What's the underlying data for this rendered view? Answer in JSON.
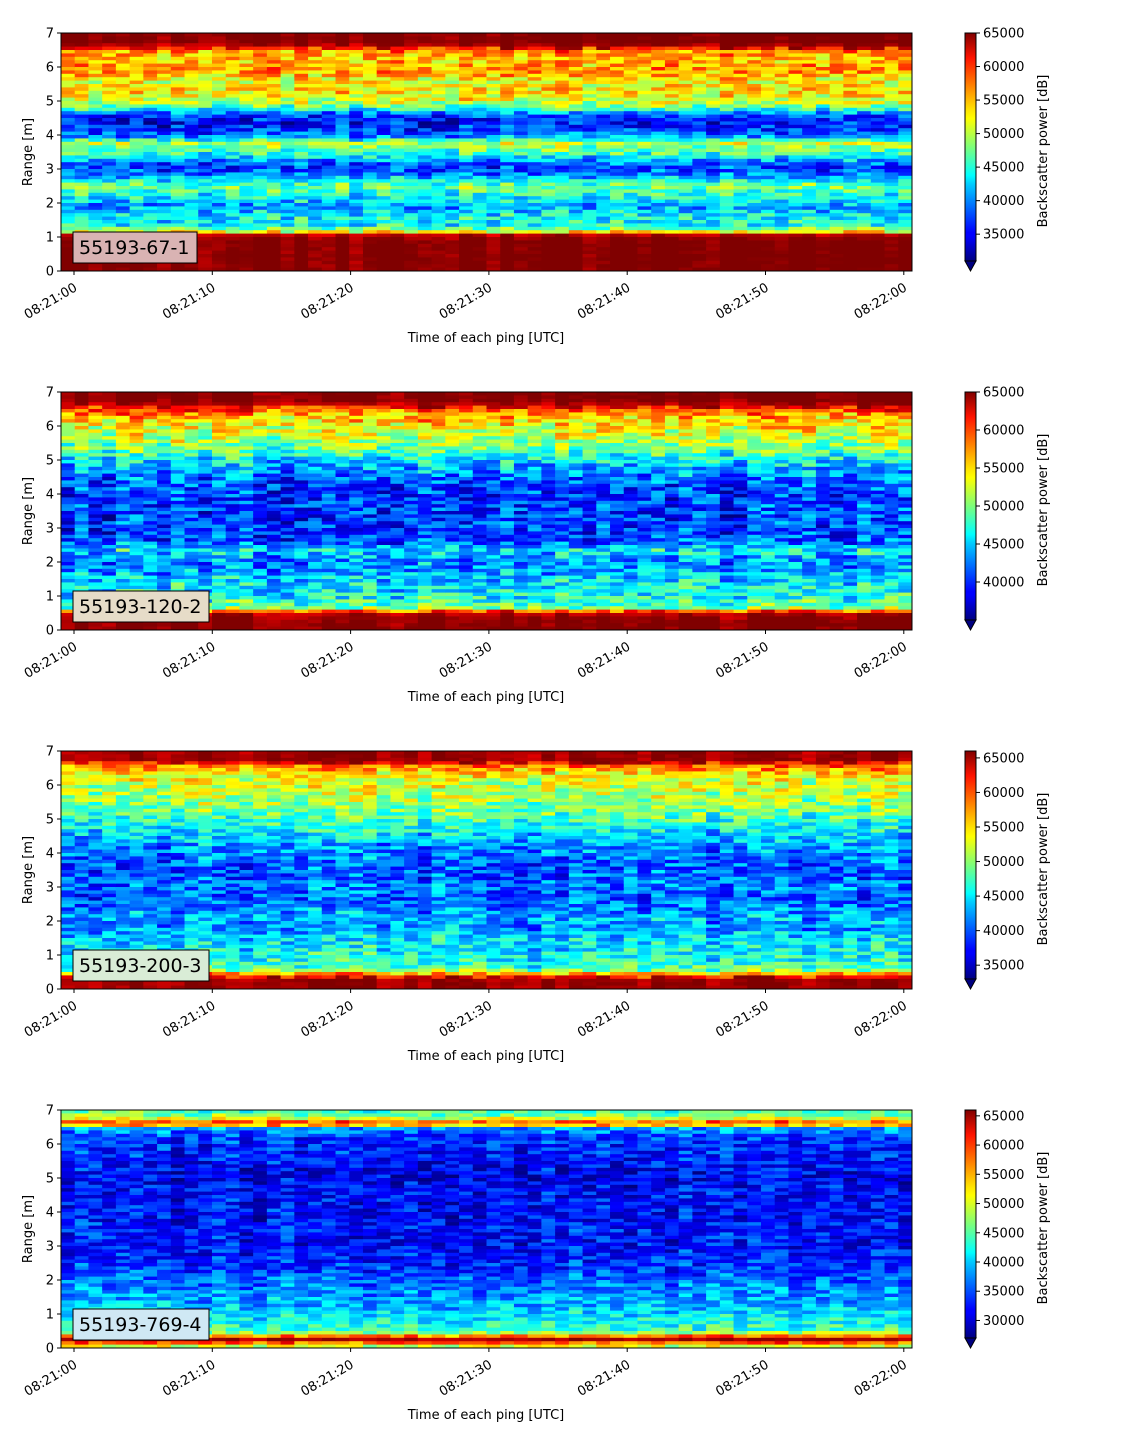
{
  "chart_data": [
    {
      "type": "heatmap",
      "label": "55193-67-1",
      "xlabel": "Time of each ping [UTC]",
      "ylabel": "Range [m]",
      "x_ticks": [
        "08:21:00",
        "08:21:10",
        "08:21:20",
        "08:21:30",
        "08:21:40",
        "08:21:50",
        "08:22:00"
      ],
      "y_ticks": [
        "0",
        "1",
        "2",
        "3",
        "4",
        "5",
        "6",
        "7"
      ],
      "xlim": [
        "08:21:00",
        "08:22:00"
      ],
      "ylim": [
        0,
        7
      ],
      "colorbar": {
        "label": "Backscatter power [dB]",
        "colormap": "jet",
        "range": [
          31000,
          65000
        ],
        "ticks": [
          "35000",
          "40000",
          "45000",
          "50000",
          "55000",
          "60000",
          "65000"
        ]
      },
      "label_box_color": "#d9b3b3",
      "profile": [
        [
          0.15,
          65000
        ],
        [
          0.3,
          65000
        ],
        [
          0.9,
          65000
        ],
        [
          1.05,
          63000
        ],
        [
          1.15,
          52000
        ],
        [
          1.3,
          44000
        ],
        [
          1.6,
          44000
        ],
        [
          1.9,
          40000
        ],
        [
          2.1,
          43000
        ],
        [
          2.3,
          45000
        ],
        [
          2.5,
          48000
        ],
        [
          2.7,
          42000
        ],
        [
          2.9,
          38000
        ],
        [
          3.1,
          37000
        ],
        [
          3.3,
          42000
        ],
        [
          3.5,
          46000
        ],
        [
          3.75,
          50000
        ],
        [
          3.95,
          40000
        ],
        [
          4.15,
          37000
        ],
        [
          4.4,
          35000
        ],
        [
          4.6,
          38000
        ],
        [
          4.8,
          46000
        ],
        [
          5.0,
          51000
        ],
        [
          5.3,
          53000
        ],
        [
          5.6,
          52000
        ],
        [
          5.9,
          56000
        ],
        [
          6.2,
          54000
        ],
        [
          6.45,
          56000
        ],
        [
          6.6,
          63000
        ],
        [
          6.75,
          65000
        ],
        [
          7,
          65000
        ]
      ]
    },
    {
      "type": "heatmap",
      "label": "55193-120-2",
      "xlabel": "Time of each ping [UTC]",
      "ylabel": "Range [m]",
      "x_ticks": [
        "08:21:00",
        "08:21:10",
        "08:21:20",
        "08:21:30",
        "08:21:40",
        "08:21:50",
        "08:22:00"
      ],
      "y_ticks": [
        "0",
        "1",
        "2",
        "3",
        "4",
        "5",
        "6",
        "7"
      ],
      "xlim": [
        "08:21:00",
        "08:22:00"
      ],
      "ylim": [
        0,
        7
      ],
      "colorbar": {
        "label": "Backscatter power [dB]",
        "colormap": "jet",
        "range": [
          35000,
          65000
        ],
        "ticks": [
          "40000",
          "45000",
          "50000",
          "55000",
          "60000",
          "65000"
        ]
      },
      "label_box_color": "#e6dcc8",
      "profile": [
        [
          0.15,
          65000
        ],
        [
          0.3,
          65000
        ],
        [
          0.5,
          63000
        ],
        [
          0.65,
          50000
        ],
        [
          0.9,
          47000
        ],
        [
          1.2,
          46000
        ],
        [
          1.5,
          45000
        ],
        [
          1.8,
          43000
        ],
        [
          2.1,
          43000
        ],
        [
          2.35,
          46000
        ],
        [
          2.6,
          41000
        ],
        [
          2.9,
          40000
        ],
        [
          3.1,
          41000
        ],
        [
          3.3,
          40000
        ],
        [
          3.6,
          41000
        ],
        [
          3.9,
          40000
        ],
        [
          4.2,
          41000
        ],
        [
          4.5,
          42000
        ],
        [
          4.8,
          44000
        ],
        [
          5.1,
          47000
        ],
        [
          5.4,
          50000
        ],
        [
          5.7,
          52000
        ],
        [
          6.0,
          54000
        ],
        [
          6.3,
          56000
        ],
        [
          6.5,
          60000
        ],
        [
          6.7,
          65000
        ],
        [
          7,
          65000
        ]
      ]
    },
    {
      "type": "heatmap",
      "label": "55193-200-3",
      "xlabel": "Time of each ping [UTC]",
      "ylabel": "Range [m]",
      "x_ticks": [
        "08:21:00",
        "08:21:10",
        "08:21:20",
        "08:21:30",
        "08:21:40",
        "08:21:50",
        "08:22:00"
      ],
      "y_ticks": [
        "0",
        "1",
        "2",
        "3",
        "4",
        "5",
        "6",
        "7"
      ],
      "xlim": [
        "08:21:00",
        "08:22:00"
      ],
      "ylim": [
        0,
        7
      ],
      "colorbar": {
        "label": "Backscatter power [dB]",
        "colormap": "jet",
        "range": [
          33000,
          66000
        ],
        "ticks": [
          "35000",
          "40000",
          "45000",
          "50000",
          "55000",
          "60000",
          "65000"
        ]
      },
      "label_box_color": "#d9ecd6",
      "profile": [
        [
          0.15,
          65000
        ],
        [
          0.3,
          65000
        ],
        [
          0.45,
          56000
        ],
        [
          0.6,
          47000
        ],
        [
          0.9,
          46000
        ],
        [
          1.2,
          45000
        ],
        [
          1.5,
          44000
        ],
        [
          1.8,
          42000
        ],
        [
          2.1,
          43000
        ],
        [
          2.4,
          41000
        ],
        [
          2.7,
          40000
        ],
        [
          3.0,
          41000
        ],
        [
          3.3,
          40000
        ],
        [
          3.6,
          40000
        ],
        [
          3.9,
          41000
        ],
        [
          4.2,
          42000
        ],
        [
          4.5,
          44000
        ],
        [
          4.8,
          46000
        ],
        [
          5.1,
          48000
        ],
        [
          5.4,
          50000
        ],
        [
          5.7,
          51000
        ],
        [
          6.0,
          52000
        ],
        [
          6.3,
          54000
        ],
        [
          6.55,
          58000
        ],
        [
          6.7,
          65000
        ],
        [
          7,
          65000
        ]
      ]
    },
    {
      "type": "heatmap",
      "label": "55193-769-4",
      "xlabel": "Time of each ping [UTC]",
      "ylabel": "Range [m]",
      "x_ticks": [
        "08:21:00",
        "08:21:10",
        "08:21:20",
        "08:21:30",
        "08:21:40",
        "08:21:50",
        "08:22:00"
      ],
      "y_ticks": [
        "0",
        "1",
        "2",
        "3",
        "4",
        "5",
        "6",
        "7"
      ],
      "xlim": [
        "08:21:00",
        "08:22:00"
      ],
      "ylim": [
        0,
        7
      ],
      "colorbar": {
        "label": "Backscatter power [dB]",
        "colormap": "jet",
        "range": [
          27000,
          66000
        ],
        "ticks": [
          "30000",
          "35000",
          "40000",
          "45000",
          "50000",
          "55000",
          "60000",
          "65000"
        ]
      },
      "label_box_color": "#cfe8f4",
      "profile": [
        [
          0.1,
          50000
        ],
        [
          0.2,
          65000
        ],
        [
          0.3,
          64000
        ],
        [
          0.38,
          52000
        ],
        [
          0.5,
          44000
        ],
        [
          0.8,
          42000
        ],
        [
          1.1,
          40000
        ],
        [
          1.4,
          38000
        ],
        [
          1.7,
          37000
        ],
        [
          2.0,
          36000
        ],
        [
          2.3,
          34000
        ],
        [
          2.6,
          33000
        ],
        [
          2.9,
          33000
        ],
        [
          3.2,
          32000
        ],
        [
          3.5,
          33000
        ],
        [
          3.8,
          32000
        ],
        [
          4.1,
          32000
        ],
        [
          4.4,
          32000
        ],
        [
          4.7,
          32000
        ],
        [
          5.0,
          31000
        ],
        [
          5.3,
          32000
        ],
        [
          5.6,
          33000
        ],
        [
          5.9,
          33000
        ],
        [
          6.2,
          34000
        ],
        [
          6.45,
          38000
        ],
        [
          6.6,
          62000
        ],
        [
          6.7,
          52000
        ],
        [
          6.85,
          46000
        ],
        [
          7,
          44000
        ]
      ]
    }
  ]
}
